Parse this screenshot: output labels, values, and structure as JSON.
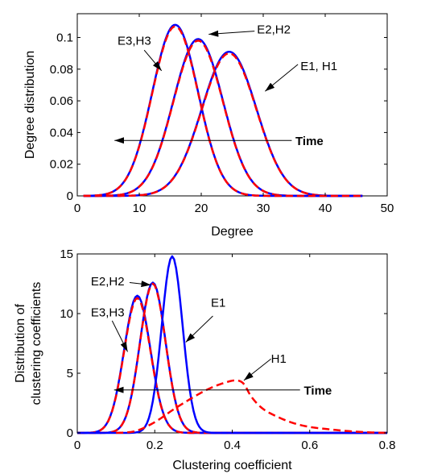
{
  "chart_data": [
    {
      "type": "line",
      "xlabel": "Degree",
      "ylabel": "Degree distribution",
      "xlim": [
        0,
        50
      ],
      "ylim": [
        0,
        0.115
      ],
      "xticks": [
        0,
        10,
        20,
        30,
        40,
        50
      ],
      "xtick_labels": [
        "0",
        "10",
        "20",
        "30",
        "40",
        "50"
      ],
      "yticks": [
        0,
        0.02,
        0.04,
        0.06,
        0.08,
        0.1
      ],
      "ytick_labels": [
        "0",
        "0.02",
        "0.04",
        "0.06",
        "0.08",
        "0.1"
      ],
      "grid": false,
      "series": [
        {
          "kind": "gaussian",
          "mu": 24.5,
          "sigma": 4.4,
          "peak": 0.091,
          "x_range": [
            1,
            46
          ],
          "color": "#0000ff",
          "dash": "solid"
        },
        {
          "kind": "gaussian",
          "mu": 24.5,
          "sigma": 4.4,
          "peak": 0.09,
          "x_range": [
            1,
            46
          ],
          "color": "#ff0000",
          "dash": "dashed"
        },
        {
          "kind": "gaussian",
          "mu": 19.5,
          "sigma": 4.0,
          "peak": 0.099,
          "x_range": [
            1,
            46
          ],
          "color": "#0000ff",
          "dash": "solid"
        },
        {
          "kind": "gaussian",
          "mu": 19.5,
          "sigma": 4.0,
          "peak": 0.098,
          "x_range": [
            1,
            46
          ],
          "color": "#ff0000",
          "dash": "dashed"
        },
        {
          "kind": "gaussian",
          "mu": 15.8,
          "sigma": 3.7,
          "peak": 0.108,
          "x_range": [
            1,
            46
          ],
          "color": "#0000ff",
          "dash": "solid"
        },
        {
          "kind": "gaussian",
          "mu": 15.8,
          "sigma": 3.7,
          "peak": 0.107,
          "x_range": [
            1,
            46
          ],
          "color": "#ff0000",
          "dash": "dashed"
        }
      ],
      "annotations": [
        {
          "text": "E3,H3",
          "text_x": 6.5,
          "text_y": 0.098,
          "arrow_from": [
            10.8,
            0.092
          ],
          "arrow_to": [
            13.6,
            0.079
          ],
          "bold": false
        },
        {
          "text": "E2,H2",
          "text_x": 29.0,
          "text_y": 0.105,
          "arrow_from": [
            28.6,
            0.104
          ],
          "arrow_to": [
            21.2,
            0.102
          ],
          "bold": false
        },
        {
          "text": "E1, H1",
          "text_x": 36.0,
          "text_y": 0.082,
          "arrow_from": [
            35.6,
            0.083
          ],
          "arrow_to": [
            30.3,
            0.066
          ],
          "bold": false
        },
        {
          "text": "Time",
          "text_x": 35.2,
          "text_y": 0.0345,
          "arrow_from": [
            34.6,
            0.035
          ],
          "arrow_to": [
            6.0,
            0.035
          ],
          "bold": true
        }
      ]
    },
    {
      "type": "line",
      "xlabel": "Clustering coefficient",
      "ylabel_lines": [
        "Distribution of",
        "clustering coefficients"
      ],
      "xlim": [
        0,
        0.8
      ],
      "ylim": [
        0,
        15
      ],
      "xticks": [
        0,
        0.2,
        0.4,
        0.6,
        0.8
      ],
      "xtick_labels": [
        "0",
        "0.2",
        "0.4",
        "0.6",
        "0.8"
      ],
      "yticks": [
        0,
        5,
        10,
        15
      ],
      "ytick_labels": [
        "0",
        "5",
        "10",
        "15"
      ],
      "grid": false,
      "series": [
        {
          "kind": "gaussian",
          "mu": 0.155,
          "sigma": 0.034,
          "peak": 11.5,
          "x_range": [
            0,
            0.8
          ],
          "color": "#0000ff",
          "dash": "solid"
        },
        {
          "kind": "gaussian",
          "mu": 0.155,
          "sigma": 0.034,
          "peak": 11.3,
          "x_range": [
            0,
            0.8
          ],
          "color": "#ff0000",
          "dash": "dashed"
        },
        {
          "kind": "gaussian",
          "mu": 0.195,
          "sigma": 0.033,
          "peak": 12.6,
          "x_range": [
            0,
            0.8
          ],
          "color": "#0000ff",
          "dash": "solid"
        },
        {
          "kind": "gaussian",
          "mu": 0.195,
          "sigma": 0.033,
          "peak": 12.5,
          "x_range": [
            0,
            0.8
          ],
          "color": "#ff0000",
          "dash": "dashed"
        },
        {
          "kind": "gaussian",
          "mu": 0.245,
          "sigma": 0.027,
          "peak": 14.8,
          "x_range": [
            0,
            0.8
          ],
          "color": "#0000ff",
          "dash": "solid"
        },
        {
          "kind": "points",
          "color": "#ff0000",
          "dash": "dashed",
          "x": [
            0.1,
            0.15,
            0.2,
            0.25,
            0.3,
            0.34,
            0.38,
            0.41,
            0.43,
            0.45,
            0.48,
            0.52,
            0.56,
            0.6,
            0.65,
            0.7,
            0.75,
            0.8
          ],
          "y": [
            0.0,
            0.15,
            0.9,
            2.0,
            3.0,
            3.7,
            4.2,
            4.4,
            4.1,
            3.0,
            2.0,
            1.3,
            0.8,
            0.5,
            0.3,
            0.15,
            0.05,
            0.0
          ]
        }
      ],
      "annotations": [
        {
          "text": "E2,H2",
          "text_x": 0.035,
          "text_y": 12.7,
          "arrow_from": [
            0.135,
            12.6
          ],
          "arrow_to": [
            0.19,
            12.4
          ],
          "bold": false
        },
        {
          "text": "E3,H3",
          "text_x": 0.035,
          "text_y": 10.1,
          "arrow_from": [
            0.09,
            9.4
          ],
          "arrow_to": [
            0.13,
            6.8
          ],
          "bold": false
        },
        {
          "text": "E1",
          "text_x": 0.345,
          "text_y": 10.9,
          "arrow_from": [
            0.35,
            9.8
          ],
          "arrow_to": [
            0.28,
            7.6
          ],
          "bold": false
        },
        {
          "text": "H1",
          "text_x": 0.5,
          "text_y": 6.2,
          "arrow_from": [
            0.5,
            6.2
          ],
          "arrow_to": [
            0.43,
            4.4
          ],
          "bold": false
        },
        {
          "text": "Time",
          "text_x": 0.585,
          "text_y": 3.55,
          "arrow_from": [
            0.575,
            3.6
          ],
          "arrow_to": [
            0.095,
            3.6
          ],
          "bold": true
        }
      ]
    }
  ]
}
